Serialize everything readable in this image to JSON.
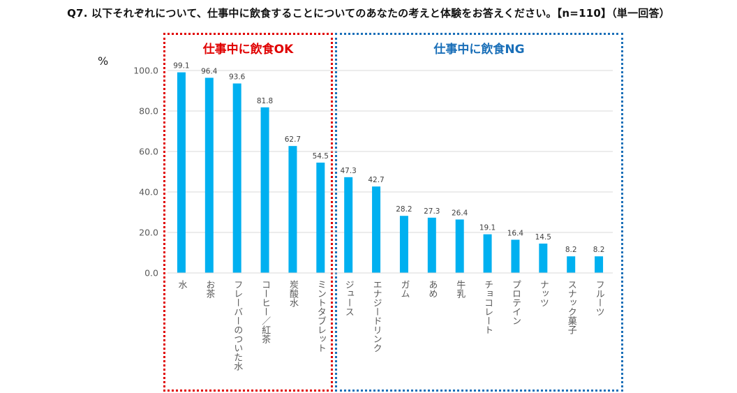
{
  "title": "Q7. 以下それぞれについて、仕事中に飲食することについてのあなたの考えと体験をお答えください。【n=110】（単一回答）",
  "unit_label": "%",
  "groups": {
    "ok": {
      "label": "仕事中に飲食OK",
      "color": "#e00000"
    },
    "ng": {
      "label": "仕事中に飲食NG",
      "color": "#1a6fb8"
    }
  },
  "chart_data": {
    "type": "bar",
    "title": "Q7. 以下それぞれについて、仕事中に飲食することについてのあなたの考えと体験をお答えください。【n=110】（単一回答）",
    "xlabel": "",
    "ylabel": "%",
    "ylim": [
      0,
      100
    ],
    "yticks": [
      "0.0",
      "20.0",
      "40.0",
      "60.0",
      "80.0",
      "100.0"
    ],
    "grid": true,
    "bar_color": "#00b0f0",
    "categories": [
      "水",
      "お茶",
      "フレーバーのついた水",
      "コーヒー／紅茶",
      "炭酸水",
      "ミントタブレット",
      "ジュース",
      "エナジードリンク",
      "ガム",
      "あめ",
      "牛乳",
      "チョコレート",
      "プロテイン",
      "ナッツ",
      "スナック菓子",
      "フルーツ"
    ],
    "values": [
      99.1,
      96.4,
      93.6,
      81.8,
      62.7,
      54.5,
      47.3,
      42.7,
      28.2,
      27.3,
      26.4,
      19.1,
      16.4,
      14.5,
      8.2,
      8.2
    ],
    "value_labels": [
      "99.1",
      "96.4",
      "93.6",
      "81.8",
      "62.7",
      "54.5",
      "47.3",
      "42.7",
      "28.2",
      "27.3",
      "26.4",
      "19.1",
      "16.4",
      "14.5",
      "8.2",
      "8.2"
    ],
    "group_assignment": [
      "ok",
      "ok",
      "ok",
      "ok",
      "ok",
      "ok",
      "ng",
      "ng",
      "ng",
      "ng",
      "ng",
      "ng",
      "ng",
      "ng",
      "ng",
      "ng"
    ]
  }
}
